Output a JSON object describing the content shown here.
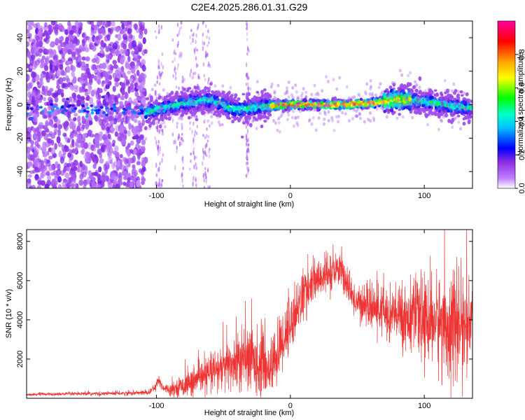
{
  "chart_data": [
    {
      "type": "heatmap",
      "title": "C2E4.2025.286.01.31.G29",
      "xlabel": "Height of straight line (km)",
      "ylabel": "Frequency (Hz)",
      "xlim": [
        -197,
        136
      ],
      "ylim": [
        -50,
        50
      ],
      "x_ticks": [
        -100,
        0,
        100
      ],
      "x_tick_labels": [
        "-100",
        "0",
        "100"
      ],
      "y_ticks": [
        -40,
        -20,
        0,
        20,
        40
      ],
      "y_tick_labels": [
        "-40",
        "-20",
        "0",
        "20",
        "40"
      ],
      "colorbar": {
        "label": "Normalized spectral amplitude",
        "range": [
          0,
          1
        ],
        "ticks": [
          0.0,
          0.2,
          0.4,
          0.6,
          0.8
        ],
        "tick_labels": [
          "0.0",
          "0.2",
          "0.4",
          "0.6",
          "0.8"
        ],
        "colors": [
          "#ffffff",
          "#8a2be2",
          "#0000ff",
          "#00ffff",
          "#00ff00",
          "#ffff00",
          "#ff8000",
          "#ff0000",
          "#ff00a0"
        ]
      },
      "ridge": {
        "x": [
          -110,
          -100,
          -80,
          -60,
          -40,
          -20,
          0,
          40,
          60,
          80,
          100,
          120,
          136
        ],
        "y": [
          -6,
          -3,
          1,
          3,
          -3,
          -1,
          0,
          0,
          1,
          3,
          2,
          -1,
          -2
        ]
      },
      "noise_region_x": [
        -197,
        -108
      ],
      "colors": {
        "ridge_peak": "#ff0000",
        "noise": "#8a2be2"
      }
    },
    {
      "type": "line",
      "xlabel": "Height of straight line (km)",
      "ylabel": "SNR (10 * v/v)",
      "xlim": [
        -197,
        136
      ],
      "ylim": [
        0,
        8600
      ],
      "x_ticks": [
        -100,
        0,
        100
      ],
      "x_tick_labels": [
        "-100",
        "0",
        "100"
      ],
      "y_ticks": [
        2000,
        4000,
        6000,
        8000
      ],
      "y_tick_labels": [
        "2000",
        "4000",
        "6000",
        "8000"
      ],
      "series": [
        {
          "name": "SNR",
          "color": "#ee3333",
          "envelope": {
            "x": [
              -197,
              -160,
              -120,
              -105,
              -98,
              -95,
              -90,
              -80,
              -70,
              -60,
              -50,
              -40,
              -30,
              -20,
              -15,
              -10,
              -5,
              0,
              5,
              10,
              15,
              20,
              25,
              30,
              35,
              38,
              40,
              45,
              50,
              60,
              70,
              80,
              90,
              100,
              110,
              115,
              120,
              125,
              130,
              136
            ],
            "mean": [
              200,
              220,
              260,
              300,
              900,
              550,
              450,
              650,
              900,
              1250,
              1550,
              1850,
              2000,
              1650,
              1500,
              2200,
              3100,
              3800,
              4600,
              5300,
              5700,
              6000,
              6300,
              6200,
              6500,
              6900,
              6100,
              5300,
              4900,
              4600,
              4400,
              4200,
              4100,
              4000,
              3900,
              3800,
              3700,
              3600,
              3700,
              3750
            ],
            "spread": [
              60,
              80,
              100,
              120,
              300,
              200,
              250,
              500,
              700,
              900,
              1100,
              1400,
              1600,
              1400,
              1200,
              1500,
              1500,
              1400,
              1200,
              1200,
              1100,
              900,
              900,
              900,
              800,
              900,
              800,
              700,
              800,
              1000,
              1200,
              1400,
              1600,
              1900,
              2200,
              2500,
              2700,
              2500,
              2000,
              1700
            ]
          }
        }
      ]
    }
  ]
}
